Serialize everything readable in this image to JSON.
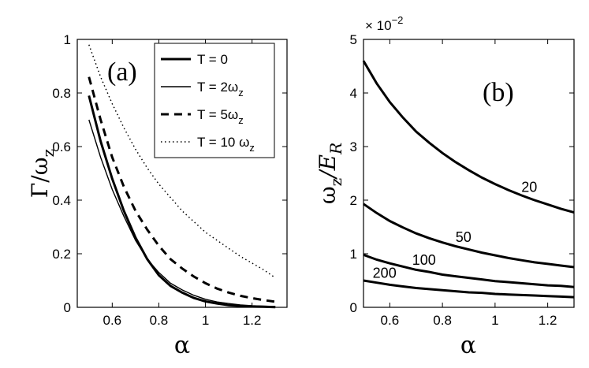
{
  "chart_data": [
    {
      "panel": "a",
      "type": "line",
      "panel_label": "(a)",
      "xlabel": "α",
      "ylabel": {
        "base": "Γ/ω",
        "sub": "z"
      },
      "xlim": [
        0.45,
        1.35
      ],
      "ylim": [
        0,
        1
      ],
      "xticks": [
        "0.6",
        "0.8",
        "1",
        "1.2"
      ],
      "yticks": [
        "0",
        "0.2",
        "0.4",
        "0.6",
        "0.8",
        "1"
      ],
      "legend_position": "top-right",
      "series": [
        {
          "name": "T = 0",
          "legend": {
            "base": "T = 0",
            "sub": ""
          },
          "style": "thick",
          "x": [
            0.5,
            0.55,
            0.6,
            0.65,
            0.7,
            0.75,
            0.8,
            0.85,
            0.9,
            0.95,
            1.0,
            1.05,
            1.1,
            1.15,
            1.2,
            1.25,
            1.3
          ],
          "y": [
            0.79,
            0.62,
            0.48,
            0.36,
            0.26,
            0.18,
            0.12,
            0.08,
            0.055,
            0.035,
            0.022,
            0.014,
            0.008,
            0.005,
            0.003,
            0.002,
            0.001
          ]
        },
        {
          "name": "T = 2ωz",
          "legend": {
            "base": "T = 2ω",
            "sub": "z"
          },
          "style": "thin",
          "x": [
            0.5,
            0.55,
            0.6,
            0.65,
            0.7,
            0.75,
            0.8,
            0.85,
            0.9,
            0.95,
            1.0,
            1.05,
            1.1,
            1.15,
            1.2,
            1.25,
            1.3
          ],
          "y": [
            0.7,
            0.56,
            0.44,
            0.34,
            0.25,
            0.18,
            0.13,
            0.09,
            0.065,
            0.045,
            0.03,
            0.02,
            0.014,
            0.009,
            0.006,
            0.004,
            0.003
          ]
        },
        {
          "name": "T = 5ωz",
          "legend": {
            "base": "T = 5ω",
            "sub": "z"
          },
          "style": "dashed",
          "x": [
            0.5,
            0.55,
            0.6,
            0.65,
            0.7,
            0.75,
            0.8,
            0.85,
            0.9,
            0.95,
            1.0,
            1.05,
            1.1,
            1.15,
            1.2,
            1.25,
            1.3
          ],
          "y": [
            0.86,
            0.7,
            0.56,
            0.45,
            0.36,
            0.29,
            0.23,
            0.18,
            0.145,
            0.115,
            0.09,
            0.07,
            0.055,
            0.043,
            0.034,
            0.027,
            0.021
          ]
        },
        {
          "name": "T = 10 ωz",
          "legend": {
            "base": "T = 10 ω",
            "sub": "z"
          },
          "style": "dotted",
          "x": [
            0.5,
            0.55,
            0.6,
            0.65,
            0.7,
            0.75,
            0.8,
            0.85,
            0.9,
            0.95,
            1.0,
            1.05,
            1.1,
            1.15,
            1.2,
            1.25,
            1.3
          ],
          "y": [
            0.98,
            0.86,
            0.76,
            0.67,
            0.59,
            0.52,
            0.46,
            0.41,
            0.36,
            0.32,
            0.28,
            0.25,
            0.22,
            0.19,
            0.165,
            0.14,
            0.11
          ]
        }
      ]
    },
    {
      "panel": "b",
      "type": "line",
      "panel_label": "(b)",
      "xlabel": "α",
      "ylabel": {
        "base": "ω",
        "sub": "z",
        "mid": "/E",
        "sub2": "R"
      },
      "scale_note": "× 10",
      "scale_exp": "−2",
      "xlim": [
        0.5,
        1.3
      ],
      "ylim": [
        0,
        5
      ],
      "xticks": [
        "0.6",
        "0.8",
        "1",
        "1.2"
      ],
      "yticks": [
        "0",
        "1",
        "2",
        "3",
        "4",
        "5"
      ],
      "series": [
        {
          "label": "20",
          "label_at": 1.13,
          "x": [
            0.5,
            0.55,
            0.6,
            0.65,
            0.7,
            0.75,
            0.8,
            0.85,
            0.9,
            0.95,
            1.0,
            1.05,
            1.1,
            1.15,
            1.2,
            1.25,
            1.3
          ],
          "y": [
            4.6,
            4.18,
            3.83,
            3.54,
            3.28,
            3.07,
            2.88,
            2.71,
            2.56,
            2.42,
            2.3,
            2.19,
            2.09,
            2.0,
            1.92,
            1.84,
            1.77
          ]
        },
        {
          "label": "50",
          "label_at": 0.88,
          "x": [
            0.5,
            0.55,
            0.6,
            0.65,
            0.7,
            0.75,
            0.8,
            0.85,
            0.9,
            0.95,
            1.0,
            1.05,
            1.1,
            1.15,
            1.2,
            1.25,
            1.3
          ],
          "y": [
            1.93,
            1.76,
            1.61,
            1.49,
            1.38,
            1.29,
            1.21,
            1.14,
            1.08,
            1.02,
            0.97,
            0.92,
            0.88,
            0.84,
            0.81,
            0.78,
            0.75
          ]
        },
        {
          "label": "100",
          "label_at": 0.73,
          "x": [
            0.5,
            0.55,
            0.6,
            0.65,
            0.7,
            0.75,
            0.8,
            0.85,
            0.9,
            0.95,
            1.0,
            1.05,
            1.1,
            1.15,
            1.2,
            1.25,
            1.3
          ],
          "y": [
            0.98,
            0.89,
            0.82,
            0.76,
            0.7,
            0.66,
            0.61,
            0.58,
            0.55,
            0.52,
            0.49,
            0.47,
            0.45,
            0.43,
            0.41,
            0.4,
            0.38
          ]
        },
        {
          "label": "200",
          "label_at": 0.58,
          "x": [
            0.5,
            0.55,
            0.6,
            0.65,
            0.7,
            0.75,
            0.8,
            0.85,
            0.9,
            0.95,
            1.0,
            1.05,
            1.1,
            1.15,
            1.2,
            1.25,
            1.3
          ],
          "y": [
            0.5,
            0.46,
            0.42,
            0.39,
            0.36,
            0.34,
            0.32,
            0.3,
            0.28,
            0.27,
            0.25,
            0.24,
            0.23,
            0.22,
            0.21,
            0.2,
            0.19
          ]
        }
      ]
    }
  ]
}
